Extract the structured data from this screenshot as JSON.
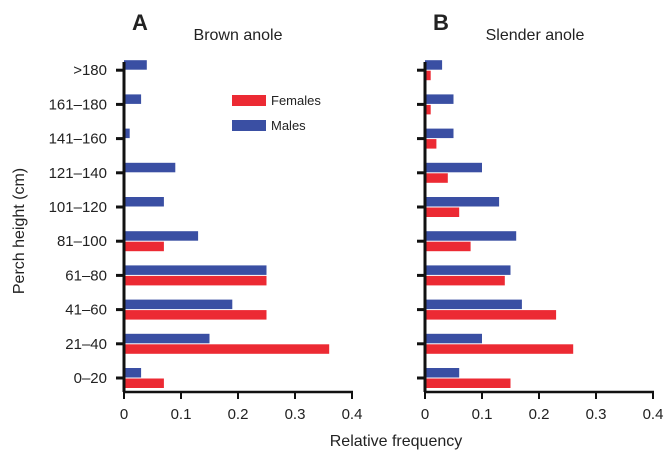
{
  "colors": {
    "females": "#ec2a33",
    "males": "#3a4fa3",
    "axis": "#111111"
  },
  "shared": {
    "ylabel": "Perch height (cm)",
    "xlabel": "Relative frequency",
    "categories": [
      "0–20",
      "21–40",
      "41–60",
      "61–80",
      "81–100",
      "101–120",
      "121–140",
      "141–160",
      "161–180",
      ">180"
    ],
    "xticks": [
      "0",
      "0.1",
      "0.2",
      "0.3",
      "0.4"
    ],
    "legend": [
      "Females",
      "Males"
    ]
  },
  "chart_data": [
    {
      "type": "bar",
      "orientation": "horizontal",
      "panel_letter": "A",
      "title": "Brown anole",
      "categories": [
        "0–20",
        "21–40",
        "41–60",
        "61–80",
        "81–100",
        "101–120",
        "121–140",
        "141–160",
        "161–180",
        ">180"
      ],
      "series": [
        {
          "name": "Females",
          "values": [
            0.07,
            0.36,
            0.25,
            0.25,
            0.07,
            0,
            0,
            0,
            0,
            0
          ]
        },
        {
          "name": "Males",
          "values": [
            0.03,
            0.15,
            0.19,
            0.25,
            0.13,
            0.07,
            0.09,
            0.01,
            0.03,
            0.04
          ]
        }
      ],
      "xlim": [
        0,
        0.4
      ],
      "legend_position": "top-right",
      "grid": false
    },
    {
      "type": "bar",
      "orientation": "horizontal",
      "panel_letter": "B",
      "title": "Slender anole",
      "categories": [
        "0–20",
        "21–40",
        "41–60",
        "61–80",
        "81–100",
        "101–120",
        "121–140",
        "141–160",
        "161–180",
        ">180"
      ],
      "series": [
        {
          "name": "Females",
          "values": [
            0.15,
            0.26,
            0.23,
            0.14,
            0.08,
            0.06,
            0.04,
            0.02,
            0.01,
            0.01
          ]
        },
        {
          "name": "Males",
          "values": [
            0.06,
            0.1,
            0.17,
            0.15,
            0.16,
            0.13,
            0.1,
            0.05,
            0.05,
            0.03
          ]
        }
      ],
      "xlim": [
        0,
        0.4
      ],
      "grid": false
    }
  ]
}
